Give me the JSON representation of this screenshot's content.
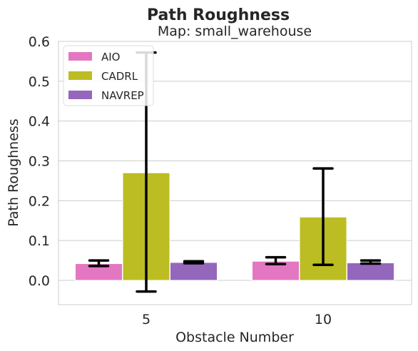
{
  "chart_data": {
    "type": "bar",
    "title": "Path Roughness",
    "subtitle": "Map: small_warehouse",
    "xlabel": "Obstacle Number",
    "ylabel": "Path Roughness",
    "categories": [
      "5",
      "10"
    ],
    "ylim": [
      -0.06,
      0.6
    ],
    "yticks": [
      "0.0",
      "0.1",
      "0.2",
      "0.3",
      "0.4",
      "0.5",
      "0.6"
    ],
    "grid": true,
    "legend_position": "top-left",
    "series": [
      {
        "name": "AIO",
        "color": "#e377c2",
        "values": [
          0.042,
          0.048
        ],
        "err_low": [
          0.036,
          0.041
        ],
        "err_high": [
          0.05,
          0.058
        ]
      },
      {
        "name": "CADRL",
        "color": "#bcbd22",
        "values": [
          0.27,
          0.159
        ],
        "err_low": [
          -0.028,
          0.039
        ],
        "err_high": [
          0.572,
          0.281
        ]
      },
      {
        "name": "NAVREP",
        "color": "#9467bd",
        "values": [
          0.045,
          0.044
        ],
        "err_low": [
          0.043,
          0.042
        ],
        "err_high": [
          0.048,
          0.05
        ]
      }
    ]
  }
}
